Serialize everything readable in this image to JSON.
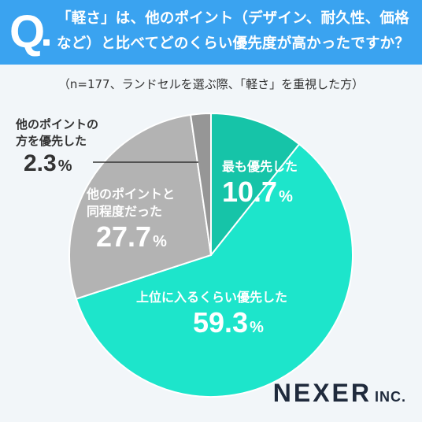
{
  "header": {
    "q_mark": "Q",
    "question": "「軽さ」は、他のポイント（デザイン、耐久性、価格など）と比べてどのくらい優先度が高かったですか？"
  },
  "note": "（n=177、ランドセルを選ぶ際、「軽さ」を重視した方）",
  "chart_data": {
    "type": "pie",
    "title": "「軽さ」は、他のポイント（デザイン、耐久性、価格など）と比べてどのくらい優先度が高かったですか？",
    "subtitle": "（n=177、ランドセルを選ぶ際、「軽さ」を重視した方）",
    "unit": "%",
    "start": "12 o'clock, clockwise",
    "slices": [
      {
        "label": "最も優先した",
        "value": 10.7,
        "value_text": "10.7",
        "color": "#16c4a8"
      },
      {
        "label": "上位に入るくらい優先した",
        "value": 59.3,
        "value_text": "59.3",
        "color": "#1de5cb"
      },
      {
        "label": "他のポイントと同程度だった",
        "value": 27.7,
        "value_text": "27.7",
        "color": "#b3b3b3"
      },
      {
        "label": "他のポイントの方を優先した",
        "value": 2.3,
        "value_text": "2.3",
        "color": "#969696"
      }
    ]
  },
  "labels": {
    "s0": {
      "line1": "最も優先した",
      "val": "10.7"
    },
    "s1": {
      "line1": "上位に入るくらい優先した",
      "val": "59.3"
    },
    "s2": {
      "line1": "他のポイントと",
      "line2": "同程度だった",
      "val": "27.7"
    },
    "s3": {
      "line1": "他のポイントの",
      "line2": "方を優先した",
      "val": "2.3"
    }
  },
  "pct_symbol": "%",
  "logo": {
    "main": "NEXER",
    "suffix": "INC."
  }
}
